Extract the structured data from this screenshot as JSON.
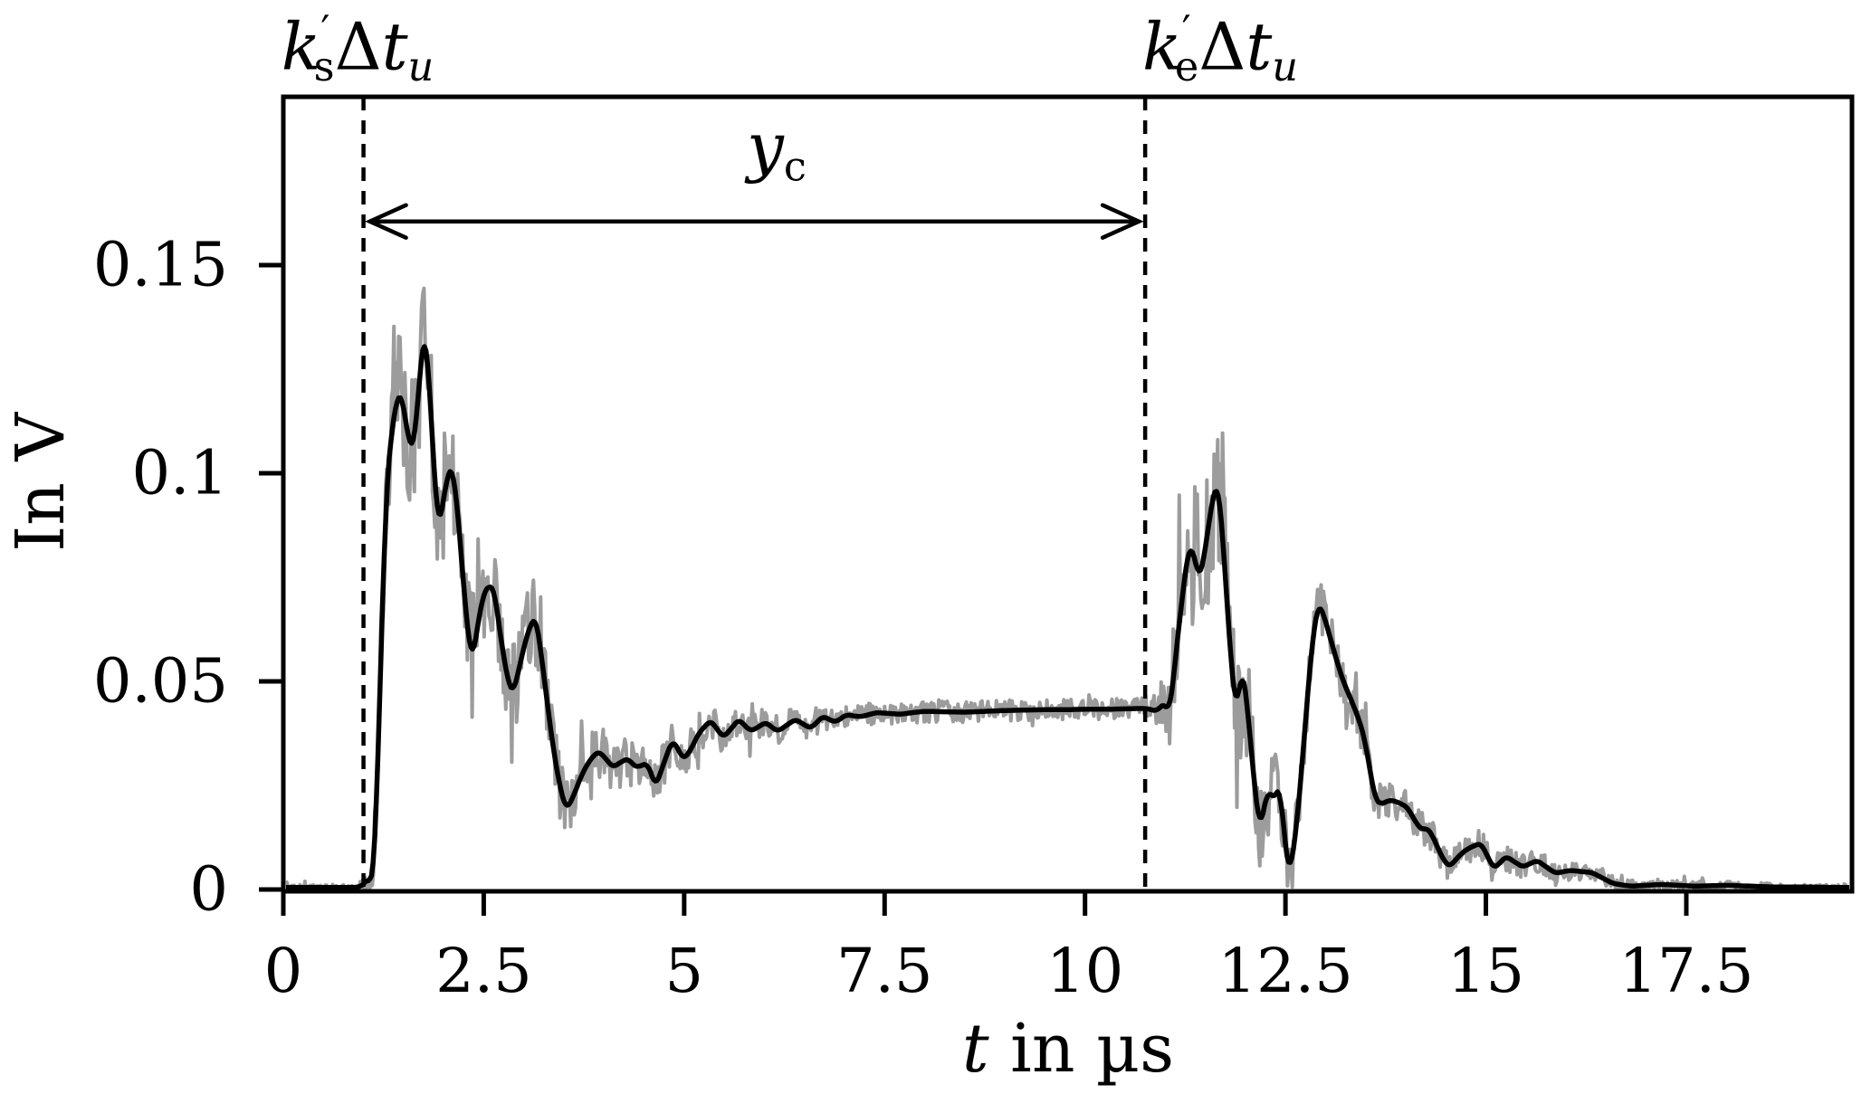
{
  "figure": {
    "background": "#ffffff"
  },
  "chart_data": {
    "type": "line",
    "title": "",
    "axes": {
      "x_label_var": "t",
      "x_label_rest": " in µs",
      "y_label": "In V",
      "x_ticks": [
        {
          "value": 0,
          "label": "0"
        },
        {
          "value": 2.5,
          "label": "2.5"
        },
        {
          "value": 5,
          "label": "5"
        },
        {
          "value": 7.5,
          "label": "7.5"
        },
        {
          "value": 10,
          "label": "10"
        },
        {
          "value": 12.5,
          "label": "12.5"
        },
        {
          "value": 15,
          "label": "15"
        },
        {
          "value": 17.5,
          "label": "17.5"
        }
      ],
      "y_ticks": [
        {
          "value": 0,
          "label": "0"
        },
        {
          "value": 0.05,
          "label": "0.05"
        },
        {
          "value": 0.1,
          "label": "0.1"
        },
        {
          "value": 0.15,
          "label": "0.15"
        }
      ],
      "xlim": [
        0,
        19.57
      ],
      "ylim": [
        -0.0004,
        0.1904
      ],
      "grid": false
    },
    "annotations": {
      "start_marker": {
        "k": "k",
        "prime": "′",
        "sub": "s",
        "delta": "Δ",
        "t_var": "t",
        "t_sub": "u"
      },
      "end_marker": {
        "k": "k",
        "prime": "′",
        "sub": "e",
        "delta": "Δ",
        "t_var": "t",
        "t_sub": "u"
      },
      "span_label": {
        "base": "y",
        "sub": "c"
      }
    },
    "markers": {
      "start_us": 1.0,
      "end_us": 10.75,
      "span_arrow_v": 0.1605
    },
    "colors": {
      "raw": "#9c9c9c",
      "smoothed": "#000000",
      "axis": "#000000"
    },
    "series": [
      {
        "name": "raw-noisy-signal",
        "color_key": "raw",
        "derived": "smoothed-signal plus band noise of the given half-amplitude envelope",
        "noise_envelope": [
          [
            0,
            0.0007
          ],
          [
            0.9,
            0.0007
          ],
          [
            1.05,
            0.002
          ],
          [
            1.15,
            0.008
          ],
          [
            1.25,
            0.014
          ],
          [
            1.45,
            0.016
          ],
          [
            1.75,
            0.017
          ],
          [
            2.0,
            0.015
          ],
          [
            2.3,
            0.014
          ],
          [
            2.6,
            0.012
          ],
          [
            2.9,
            0.011
          ],
          [
            3.2,
            0.01
          ],
          [
            3.5,
            0.008
          ],
          [
            3.9,
            0.0065
          ],
          [
            4.5,
            0.006
          ],
          [
            5.0,
            0.005
          ],
          [
            5.5,
            0.0042
          ],
          [
            6.0,
            0.0036
          ],
          [
            7.0,
            0.0028
          ],
          [
            8.0,
            0.0026
          ],
          [
            9.0,
            0.0025
          ],
          [
            10.0,
            0.0025
          ],
          [
            10.7,
            0.0026
          ],
          [
            10.95,
            0.005
          ],
          [
            11.05,
            0.012
          ],
          [
            11.2,
            0.018
          ],
          [
            11.45,
            0.019
          ],
          [
            11.7,
            0.018
          ],
          [
            11.9,
            0.016
          ],
          [
            12.1,
            0.013
          ],
          [
            12.35,
            0.011
          ],
          [
            12.6,
            0.008
          ],
          [
            12.9,
            0.006
          ],
          [
            13.2,
            0.0058
          ],
          [
            13.5,
            0.005
          ],
          [
            13.8,
            0.0045
          ],
          [
            14.1,
            0.004
          ],
          [
            14.5,
            0.0038
          ],
          [
            14.9,
            0.0035
          ],
          [
            15.3,
            0.003
          ],
          [
            15.7,
            0.0028
          ],
          [
            16.1,
            0.0022
          ],
          [
            16.5,
            0.0018
          ],
          [
            17.0,
            0.0013
          ],
          [
            17.5,
            0.0012
          ],
          [
            18.0,
            0.001
          ],
          [
            18.5,
            0.0009
          ],
          [
            19.57,
            0.0008
          ]
        ]
      },
      {
        "name": "smoothed-signal",
        "color_key": "smoothed",
        "points": [
          [
            0,
            0.0005
          ],
          [
            0.3,
            0.0005
          ],
          [
            0.6,
            0.0005
          ],
          [
            0.85,
            0.0005
          ],
          [
            0.95,
            0.0006
          ],
          [
            1.02,
            0.0015
          ],
          [
            1.06,
            0.003
          ],
          [
            1.1,
            0.0015
          ],
          [
            1.14,
            0.006
          ],
          [
            1.2,
            0.045
          ],
          [
            1.28,
            0.095
          ],
          [
            1.36,
            0.112
          ],
          [
            1.43,
            0.1185
          ],
          [
            1.47,
            0.12
          ],
          [
            1.52,
            0.113
          ],
          [
            1.58,
            0.1065
          ],
          [
            1.63,
            0.106
          ],
          [
            1.68,
            0.118
          ],
          [
            1.73,
            0.13
          ],
          [
            1.77,
            0.135
          ],
          [
            1.82,
            0.122
          ],
          [
            1.88,
            0.101
          ],
          [
            1.93,
            0.086
          ],
          [
            1.99,
            0.0925
          ],
          [
            2.05,
            0.1
          ],
          [
            2.11,
            0.102
          ],
          [
            2.18,
            0.09
          ],
          [
            2.26,
            0.07
          ],
          [
            2.35,
            0.054
          ],
          [
            2.42,
            0.063
          ],
          [
            2.5,
            0.0715
          ],
          [
            2.57,
            0.073
          ],
          [
            2.63,
            0.0725
          ],
          [
            2.7,
            0.062
          ],
          [
            2.8,
            0.05
          ],
          [
            2.87,
            0.047
          ],
          [
            2.95,
            0.054
          ],
          [
            3.05,
            0.062
          ],
          [
            3.15,
            0.066
          ],
          [
            3.24,
            0.053
          ],
          [
            3.35,
            0.036
          ],
          [
            3.45,
            0.0245
          ],
          [
            3.53,
            0.019
          ],
          [
            3.62,
            0.0225
          ],
          [
            3.72,
            0.0275
          ],
          [
            3.82,
            0.031
          ],
          [
            3.93,
            0.0333
          ],
          [
            4.02,
            0.0315
          ],
          [
            4.11,
            0.0293
          ],
          [
            4.2,
            0.0305
          ],
          [
            4.3,
            0.0315
          ],
          [
            4.36,
            0.03
          ],
          [
            4.42,
            0.0293
          ],
          [
            4.48,
            0.03
          ],
          [
            4.54,
            0.0302
          ],
          [
            4.59,
            0.028
          ],
          [
            4.64,
            0.0246
          ],
          [
            4.74,
            0.03
          ],
          [
            4.85,
            0.0359
          ],
          [
            4.92,
            0.034
          ],
          [
            4.99,
            0.0311
          ],
          [
            5.08,
            0.0335
          ],
          [
            5.18,
            0.0375
          ],
          [
            5.33,
            0.0407
          ],
          [
            5.41,
            0.0385
          ],
          [
            5.49,
            0.0365
          ],
          [
            5.58,
            0.0385
          ],
          [
            5.68,
            0.0409
          ],
          [
            5.75,
            0.0395
          ],
          [
            5.83,
            0.038
          ],
          [
            5.92,
            0.039
          ],
          [
            6.02,
            0.0402
          ],
          [
            6.09,
            0.039
          ],
          [
            6.17,
            0.038
          ],
          [
            6.28,
            0.0395
          ],
          [
            6.39,
            0.0409
          ],
          [
            6.48,
            0.0398
          ],
          [
            6.57,
            0.0387
          ],
          [
            6.65,
            0.04
          ],
          [
            6.73,
            0.0417
          ],
          [
            6.81,
            0.0408
          ],
          [
            6.89,
            0.0402
          ],
          [
            6.95,
            0.041
          ],
          [
            7.02,
            0.042
          ],
          [
            7.12,
            0.0417
          ],
          [
            7.2,
            0.0415
          ],
          [
            7.3,
            0.042
          ],
          [
            7.4,
            0.0425
          ],
          [
            7.55,
            0.0423
          ],
          [
            7.7,
            0.0421
          ],
          [
            7.85,
            0.0425
          ],
          [
            8.0,
            0.0428
          ],
          [
            8.25,
            0.0427
          ],
          [
            8.5,
            0.0426
          ],
          [
            8.75,
            0.0428
          ],
          [
            9.0,
            0.043
          ],
          [
            9.25,
            0.0431
          ],
          [
            9.5,
            0.0432
          ],
          [
            9.75,
            0.0432
          ],
          [
            10.0,
            0.0433
          ],
          [
            10.25,
            0.0433
          ],
          [
            10.5,
            0.0434
          ],
          [
            10.7,
            0.0435
          ],
          [
            10.8,
            0.0434
          ],
          [
            10.88,
            0.0428
          ],
          [
            10.94,
            0.0438
          ],
          [
            11.0,
            0.0448
          ],
          [
            11.04,
            0.0425
          ],
          [
            11.08,
            0.046
          ],
          [
            11.14,
            0.058
          ],
          [
            11.2,
            0.068
          ],
          [
            11.26,
            0.078
          ],
          [
            11.31,
            0.083
          ],
          [
            11.36,
            0.0805
          ],
          [
            11.42,
            0.0745
          ],
          [
            11.47,
            0.078
          ],
          [
            11.53,
            0.086
          ],
          [
            11.6,
            0.095
          ],
          [
            11.65,
            0.098
          ],
          [
            11.7,
            0.09
          ],
          [
            11.76,
            0.072
          ],
          [
            11.82,
            0.055
          ],
          [
            11.88,
            0.043
          ],
          [
            11.92,
            0.047
          ],
          [
            11.96,
            0.054
          ],
          [
            12.02,
            0.045
          ],
          [
            12.08,
            0.032
          ],
          [
            12.13,
            0.022
          ],
          [
            12.18,
            0.0145
          ],
          [
            12.23,
            0.019
          ],
          [
            12.28,
            0.0245
          ],
          [
            12.33,
            0.0215
          ],
          [
            12.38,
            0.023
          ],
          [
            12.44,
            0.0245
          ],
          [
            12.48,
            0.014
          ],
          [
            12.52,
            0.006
          ],
          [
            12.56,
            0.0046
          ],
          [
            12.62,
            0.012
          ],
          [
            12.7,
            0.028
          ],
          [
            12.78,
            0.048
          ],
          [
            12.85,
            0.062
          ],
          [
            12.91,
            0.069
          ],
          [
            12.97,
            0.0665
          ],
          [
            13.05,
            0.061
          ],
          [
            13.15,
            0.0543
          ],
          [
            13.22,
            0.05
          ],
          [
            13.3,
            0.0465
          ],
          [
            13.43,
            0.0402
          ],
          [
            13.5,
            0.035
          ],
          [
            13.56,
            0.028
          ],
          [
            13.62,
            0.0215
          ],
          [
            13.7,
            0.0205
          ],
          [
            13.8,
            0.0215
          ],
          [
            13.9,
            0.021
          ],
          [
            14.02,
            0.0198
          ],
          [
            14.1,
            0.017
          ],
          [
            14.19,
            0.0143
          ],
          [
            14.26,
            0.0148
          ],
          [
            14.32,
            0.0135
          ],
          [
            14.4,
            0.01
          ],
          [
            14.48,
            0.0068
          ],
          [
            14.55,
            0.0054
          ],
          [
            14.65,
            0.0078
          ],
          [
            14.75,
            0.0095
          ],
          [
            14.85,
            0.0105
          ],
          [
            14.94,
            0.0111
          ],
          [
            15.02,
            0.008
          ],
          [
            15.1,
            0.005
          ],
          [
            15.18,
            0.0065
          ],
          [
            15.25,
            0.008
          ],
          [
            15.36,
            0.0066
          ],
          [
            15.46,
            0.0054
          ],
          [
            15.55,
            0.0062
          ],
          [
            15.64,
            0.007
          ],
          [
            15.76,
            0.0053
          ],
          [
            15.87,
            0.0039
          ],
          [
            15.97,
            0.0043
          ],
          [
            16.06,
            0.0046
          ],
          [
            16.19,
            0.0043
          ],
          [
            16.32,
            0.0041
          ],
          [
            16.45,
            0.0028
          ],
          [
            16.58,
            0.0015
          ],
          [
            16.72,
            0.001
          ],
          [
            16.83,
            0.0008
          ],
          [
            17.0,
            0.001
          ],
          [
            17.2,
            0.0012
          ],
          [
            17.4,
            0.001
          ],
          [
            17.6,
            0.0008
          ],
          [
            17.8,
            0.0009
          ],
          [
            18.0,
            0.001
          ],
          [
            18.3,
            0.0008
          ],
          [
            18.6,
            0.0006
          ],
          [
            19.0,
            0.0006
          ],
          [
            19.3,
            0.0005
          ],
          [
            19.57,
            0.0005
          ]
        ]
      }
    ]
  }
}
